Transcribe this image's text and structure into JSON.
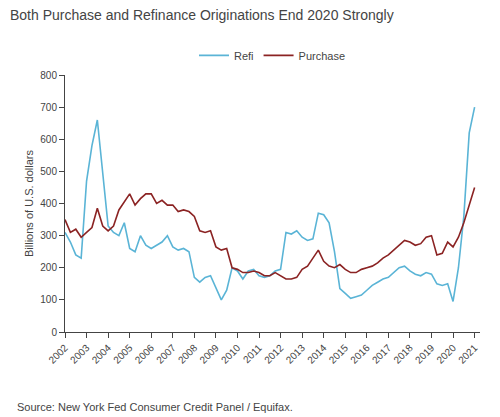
{
  "chart_data": {
    "type": "line",
    "title": "Both Purchase and Refinance Originations End 2020 Strongly",
    "ylabel": "Billions of U.S. dollars",
    "annotations": [
      "Source: New York Fed Consumer Credit Panel / Equifax."
    ],
    "x": [
      2002,
      2002.25,
      2002.5,
      2002.75,
      2003,
      2003.25,
      2003.5,
      2003.75,
      2004,
      2004.25,
      2004.5,
      2004.75,
      2005,
      2005.25,
      2005.5,
      2005.75,
      2006,
      2006.25,
      2006.5,
      2006.75,
      2007,
      2007.25,
      2007.5,
      2007.75,
      2008,
      2008.25,
      2008.5,
      2008.75,
      2009,
      2009.25,
      2009.5,
      2009.75,
      2010,
      2010.25,
      2010.5,
      2010.75,
      2011,
      2011.25,
      2011.5,
      2011.75,
      2012,
      2012.25,
      2012.5,
      2012.75,
      2013,
      2013.25,
      2013.5,
      2013.75,
      2014,
      2014.25,
      2014.5,
      2014.75,
      2015,
      2015.25,
      2015.5,
      2015.75,
      2016,
      2016.25,
      2016.5,
      2016.75,
      2017,
      2017.25,
      2017.5,
      2017.75,
      2018,
      2018.25,
      2018.5,
      2018.75,
      2019,
      2019.25,
      2019.5,
      2019.75,
      2020,
      2020.25,
      2020.5,
      2020.75,
      2021
    ],
    "series": [
      {
        "name": "Refi",
        "color": "#5ab4d6",
        "values": [
          310,
          280,
          240,
          230,
          470,
          580,
          660,
          500,
          330,
          310,
          300,
          340,
          260,
          250,
          300,
          270,
          260,
          270,
          280,
          300,
          265,
          255,
          260,
          250,
          170,
          155,
          170,
          175,
          140,
          100,
          130,
          200,
          190,
          165,
          190,
          195,
          175,
          170,
          175,
          190,
          195,
          310,
          305,
          315,
          295,
          285,
          290,
          370,
          365,
          340,
          250,
          135,
          120,
          105,
          110,
          115,
          130,
          145,
          155,
          165,
          170,
          185,
          200,
          205,
          190,
          180,
          175,
          185,
          180,
          150,
          145,
          150,
          95,
          200,
          360,
          620,
          700
        ]
      },
      {
        "name": "Purchase",
        "color": "#8b2323",
        "values": [
          350,
          310,
          320,
          295,
          310,
          325,
          385,
          330,
          315,
          330,
          380,
          405,
          430,
          395,
          415,
          430,
          430,
          400,
          410,
          395,
          395,
          375,
          380,
          375,
          360,
          315,
          310,
          315,
          265,
          255,
          260,
          200,
          195,
          185,
          185,
          190,
          185,
          175,
          175,
          185,
          175,
          165,
          165,
          170,
          195,
          205,
          230,
          255,
          220,
          205,
          200,
          210,
          195,
          185,
          185,
          195,
          200,
          205,
          215,
          230,
          240,
          255,
          270,
          285,
          280,
          270,
          275,
          295,
          300,
          240,
          245,
          280,
          265,
          295,
          340,
          395,
          450
        ]
      }
    ],
    "xlim": [
      2002,
      2021.25
    ],
    "xticks": [
      2002,
      2003,
      2004,
      2005,
      2006,
      2007,
      2008,
      2009,
      2010,
      2011,
      2012,
      2013,
      2014,
      2015,
      2016,
      2017,
      2018,
      2019,
      2020,
      2021
    ],
    "ylim": [
      0,
      800
    ],
    "yticks": [
      0,
      100,
      200,
      300,
      400,
      500,
      600,
      700,
      800
    ],
    "grid": false,
    "legend": "top"
  }
}
